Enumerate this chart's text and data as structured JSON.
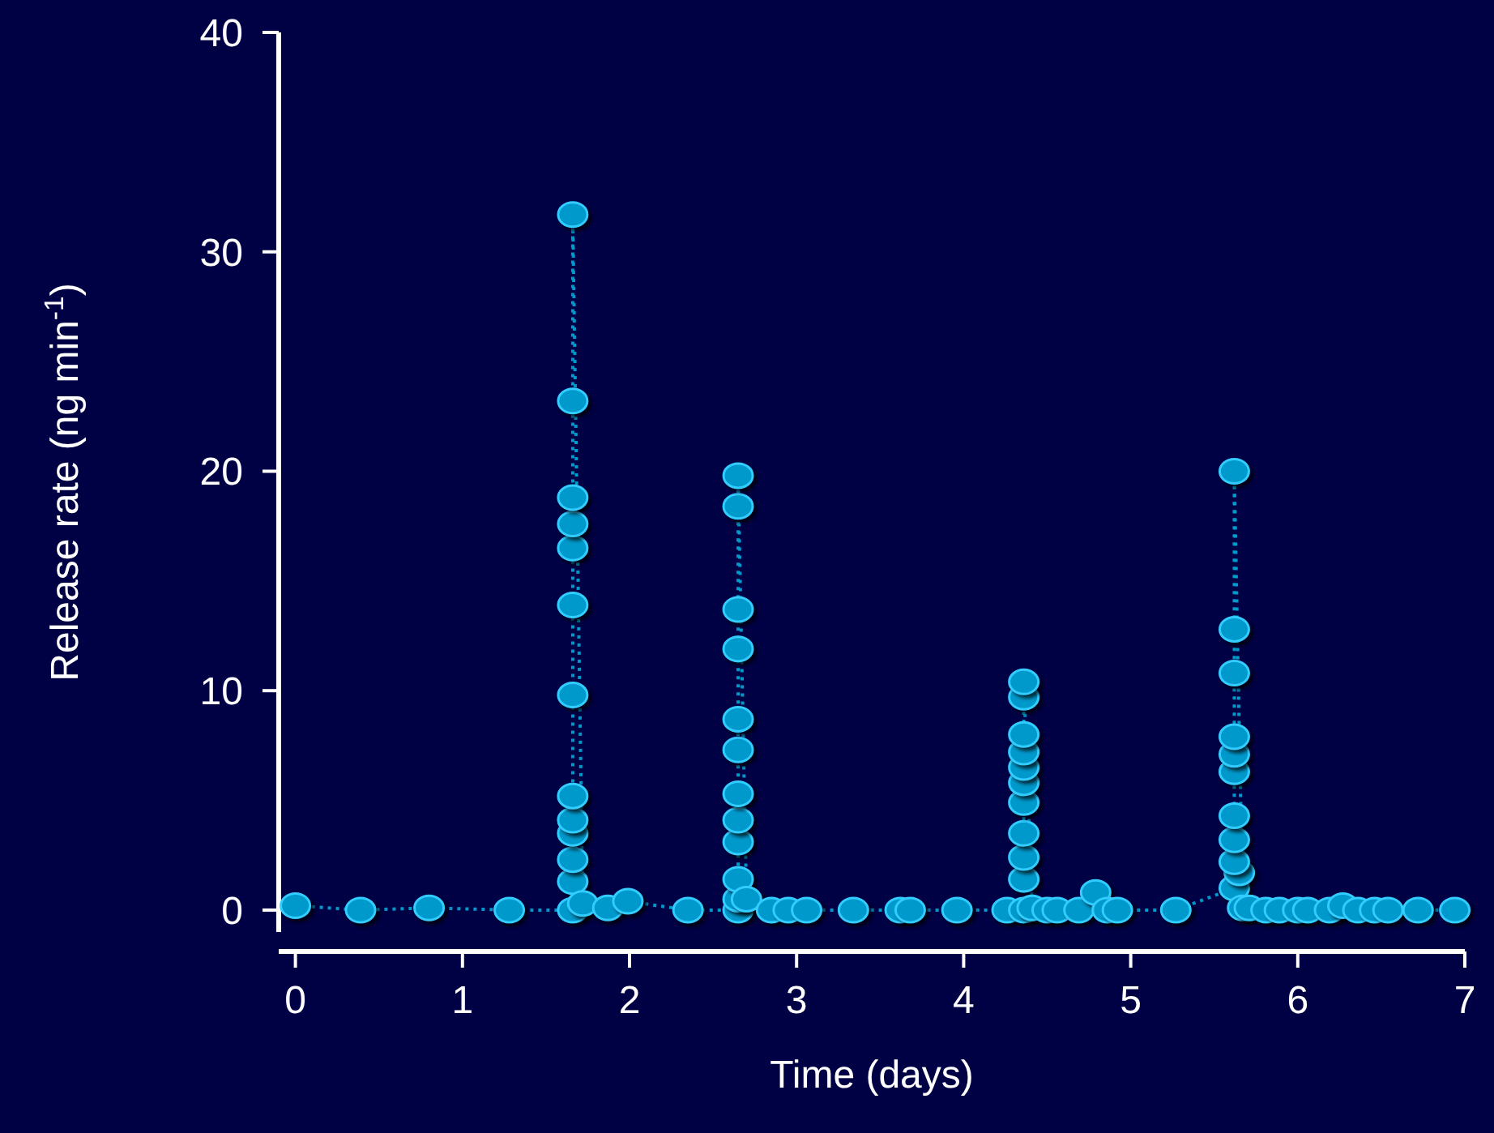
{
  "chart_data": {
    "type": "line",
    "xlabel": "Time (days)",
    "ylabel": "Release rate (ng min$^{-1}$)",
    "x": [
      0,
      0.39,
      0.8,
      1.28,
      1.66,
      1.66,
      1.66,
      1.66,
      1.66,
      1.66,
      1.66,
      1.66,
      1.66,
      1.66,
      1.66,
      1.66,
      1.66,
      1.72,
      1.87,
      1.99,
      2.35,
      2.65,
      2.65,
      2.65,
      2.65,
      2.65,
      2.65,
      2.65,
      2.65,
      2.65,
      2.65,
      2.65,
      2.65,
      2.7,
      2.85,
      2.95,
      3.06,
      3.34,
      3.62,
      3.68,
      3.96,
      4.26,
      4.36,
      4.36,
      4.36,
      4.36,
      4.36,
      4.36,
      4.36,
      4.36,
      4.36,
      4.36,
      4.36,
      4.41,
      4.5,
      4.56,
      4.69,
      4.79,
      4.86,
      4.92,
      5.27,
      5.62,
      5.65,
      5.62,
      5.62,
      5.62,
      5.62,
      5.62,
      5.62,
      5.62,
      5.62,
      5.62,
      5.67,
      5.71,
      5.81,
      5.89,
      6.0,
      6.06,
      6.19,
      6.27,
      6.36,
      6.46,
      6.54,
      6.72,
      6.94
    ],
    "series": [
      {
        "color": "#0099cc",
        "values": [
          0.2,
          0,
          0.1,
          0,
          0,
          1.3,
          2.3,
          3.5,
          4.1,
          5.2,
          9.8,
          13.9,
          16.5,
          17.6,
          18.8,
          23.2,
          31.7,
          0.3,
          0.1,
          0.4,
          0,
          0,
          0.5,
          1.4,
          3.1,
          4.1,
          5.3,
          7.3,
          8.7,
          11.9,
          13.7,
          18.4,
          19.8,
          0.5,
          0,
          0,
          0,
          0,
          0,
          0,
          0,
          0,
          0,
          1.4,
          2.4,
          3.5,
          4.9,
          5.8,
          6.5,
          7.2,
          8,
          9.7,
          10.4,
          0.1,
          0,
          0,
          0,
          0.8,
          0,
          0,
          0,
          1,
          1.7,
          2.2,
          3.2,
          4.3,
          6.3,
          7.1,
          7.9,
          10.8,
          12.8,
          20,
          0.1,
          0.1,
          0,
          0,
          0,
          0,
          0,
          0.2,
          0,
          0,
          0,
          0,
          0
        ]
      }
    ],
    "xlim": [
      -0.1,
      7
    ],
    "ylim": [
      -1,
      40
    ],
    "xticks": [
      0,
      1,
      2,
      3,
      4,
      5,
      6,
      7
    ],
    "yticks": [
      0,
      10,
      20,
      30,
      40
    ],
    "marker": "circle",
    "line_style": "dotted"
  }
}
